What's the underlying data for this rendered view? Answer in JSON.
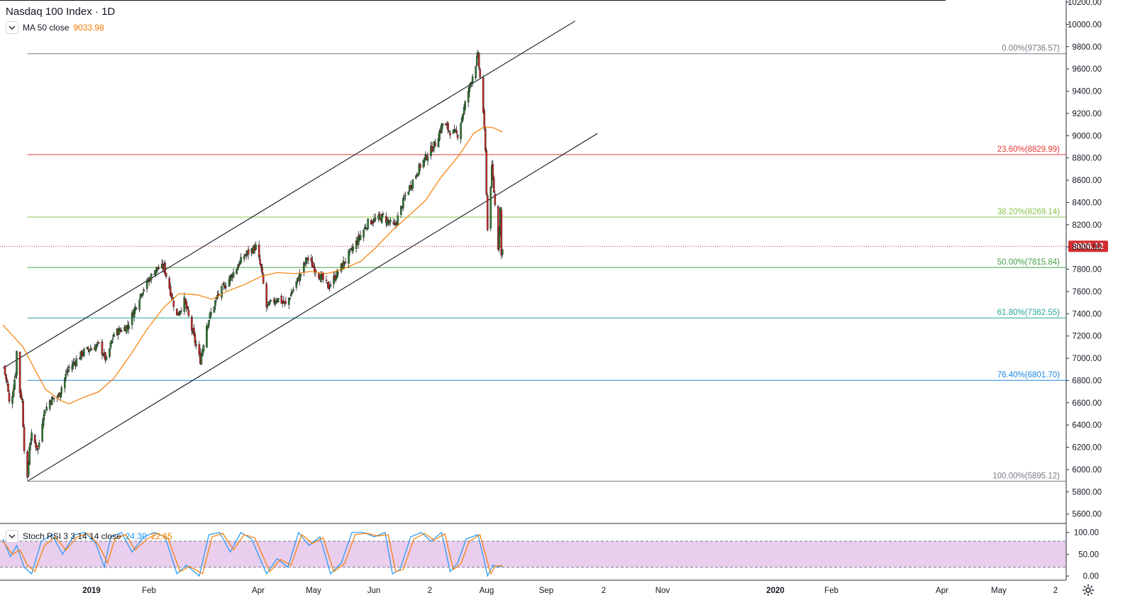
{
  "header": {
    "symbol_title": "Nasdaq 100 Index · 1D",
    "ma_label": "MA 50 close",
    "ma_value": "9033.98",
    "stoch_label": "Stoch RSI 3 3 14 14 close",
    "stoch_k": "24.30",
    "stoch_d": "22.65"
  },
  "icons": {
    "collapse": "chevron-down-icon",
    "settings": "gear-icon"
  },
  "colors": {
    "up": "#26a69a",
    "up_body": "#2e7d32",
    "down": "#c62828",
    "ma": "#f57c00",
    "stoch_k": "#2196f3",
    "stoch_d": "#f57c00",
    "stoch_band": "#e1bee7",
    "last_price_badge": "#d32f2f"
  },
  "chart_data": [
    {
      "type": "candlestick",
      "title": "Nasdaq 100 Index · 1D",
      "y_axis_ticks": [
        "5600.00",
        "5800.00",
        "6000.00",
        "6200.00",
        "6400.00",
        "6600.00",
        "6800.00",
        "7000.00",
        "7200.00",
        "7400.00",
        "7600.00",
        "7800.00",
        "8000.00",
        "8200.00",
        "8400.00",
        "8600.00",
        "8800.00",
        "9000.00",
        "9200.00",
        "9400.00",
        "9600.00",
        "9800.00",
        "10000.00",
        "10200.00"
      ],
      "ylim": [
        5500,
        10200
      ],
      "x_axis_ticks": [
        "2019",
        "Feb",
        "Apr",
        "May",
        "Jun",
        "2",
        "Aug",
        "Sep",
        "2",
        "Nov",
        "2020",
        "Feb",
        "Apr",
        "May",
        "2"
      ],
      "last_price": "8006.12",
      "close_path": [
        [
          "2018-12-01",
          6930
        ],
        [
          "2018-12-05",
          6780
        ],
        [
          "2018-12-07",
          6600
        ],
        [
          "2018-12-10",
          6680
        ],
        [
          "2018-12-13",
          6880
        ],
        [
          "2018-12-14",
          7060
        ],
        [
          "2018-12-17",
          6700
        ],
        [
          "2018-12-19",
          6620
        ],
        [
          "2018-12-21",
          6200
        ],
        [
          "2018-12-24",
          5900
        ],
        [
          "2018-12-26",
          6220
        ],
        [
          "2018-12-28",
          6300
        ],
        [
          "2019-01-03",
          6180
        ],
        [
          "2019-01-08",
          6500
        ],
        [
          "2019-01-14",
          6620
        ],
        [
          "2019-01-22",
          6660
        ],
        [
          "2019-01-31",
          6900
        ],
        [
          "2019-02-15",
          7060
        ],
        [
          "2019-03-01",
          7120
        ],
        [
          "2019-03-08",
          6980
        ],
        [
          "2019-03-15",
          7220
        ],
        [
          "2019-03-28",
          7290
        ],
        [
          "2019-04-10",
          7600
        ],
        [
          "2019-04-23",
          7800
        ],
        [
          "2019-05-01",
          7820
        ],
        [
          "2019-05-07",
          7600
        ],
        [
          "2019-05-13",
          7380
        ],
        [
          "2019-05-20",
          7520
        ],
        [
          "2019-05-31",
          7110
        ],
        [
          "2019-06-04",
          6980
        ],
        [
          "2019-06-10",
          7300
        ],
        [
          "2019-06-20",
          7560
        ],
        [
          "2019-07-03",
          7740
        ],
        [
          "2019-07-15",
          7920
        ],
        [
          "2019-07-26",
          8000
        ],
        [
          "2019-07-31",
          7800
        ],
        [
          "2019-08-05",
          7460
        ],
        [
          "2019-08-15",
          7540
        ],
        [
          "2019-08-23",
          7480
        ],
        [
          "2019-09-05",
          7740
        ],
        [
          "2019-09-12",
          7900
        ],
        [
          "2019-09-24",
          7740
        ],
        [
          "2019-10-02",
          7640
        ],
        [
          "2019-10-10",
          7760
        ],
        [
          "2019-10-25",
          7990
        ],
        [
          "2019-11-08",
          8220
        ],
        [
          "2019-11-22",
          8270
        ],
        [
          "2019-12-03",
          8180
        ],
        [
          "2019-12-13",
          8460
        ],
        [
          "2019-12-27",
          8730
        ],
        [
          "2020-01-10",
          8930
        ],
        [
          "2020-01-17",
          9110
        ],
        [
          "2020-01-24",
          9040
        ],
        [
          "2020-01-31",
          9010
        ],
        [
          "2020-02-10",
          9400
        ],
        [
          "2020-02-19",
          9718
        ],
        [
          "2020-02-24",
          9220
        ],
        [
          "2020-02-26",
          8850
        ],
        [
          "2020-02-28",
          8150
        ],
        [
          "2020-03-03",
          8700
        ],
        [
          "2020-03-05",
          8500
        ],
        [
          "2020-03-09",
          8000
        ],
        [
          "2020-03-11",
          8350
        ],
        [
          "2020-03-12",
          7920
        ],
        [
          "2020-03-13",
          8006
        ]
      ],
      "series": [
        {
          "name": "MA 50 close",
          "points": [
            [
              "2018-12-01",
              7300
            ],
            [
              "2018-12-20",
              7100
            ],
            [
              "2019-01-01",
              6880
            ],
            [
              "2019-01-10",
              6720
            ],
            [
              "2019-01-24",
              6620
            ],
            [
              "2019-02-01",
              6590
            ],
            [
              "2019-02-15",
              6650
            ],
            [
              "2019-03-01",
              6700
            ],
            [
              "2019-03-15",
              6820
            ],
            [
              "2019-04-01",
              7050
            ],
            [
              "2019-04-15",
              7260
            ],
            [
              "2019-05-01",
              7460
            ],
            [
              "2019-05-15",
              7580
            ],
            [
              "2019-06-01",
              7570
            ],
            [
              "2019-06-15",
              7530
            ],
            [
              "2019-07-01",
              7610
            ],
            [
              "2019-07-15",
              7660
            ],
            [
              "2019-08-01",
              7740
            ],
            [
              "2019-08-15",
              7770
            ],
            [
              "2019-09-01",
              7760
            ],
            [
              "2019-09-15",
              7780
            ],
            [
              "2019-10-01",
              7760
            ],
            [
              "2019-10-15",
              7800
            ],
            [
              "2019-11-01",
              7870
            ],
            [
              "2019-11-15",
              7990
            ],
            [
              "2019-12-01",
              8150
            ],
            [
              "2019-12-15",
              8270
            ],
            [
              "2020-01-01",
              8420
            ],
            [
              "2020-01-15",
              8620
            ],
            [
              "2020-02-01",
              8820
            ],
            [
              "2020-02-15",
              9020
            ],
            [
              "2020-02-25",
              9080
            ],
            [
              "2020-03-05",
              9070
            ],
            [
              "2020-03-13",
              9034
            ]
          ]
        }
      ],
      "channel": {
        "upper": [
          [
            "2018-12-01",
            6910
          ],
          [
            "2020-05-20",
            10030
          ]
        ],
        "lower": [
          [
            "2018-12-24",
            5895
          ],
          [
            "2020-06-10",
            9020
          ]
        ]
      },
      "fibonacci": {
        "start_date": "2018-12-24",
        "levels": [
          {
            "label": "0.00%(9736.57)",
            "price": 9736.57,
            "color": "#787b86"
          },
          {
            "label": "23.60%(8829.99)",
            "price": 8829.99,
            "color": "#e53935"
          },
          {
            "label": "38.20%(8269.14)",
            "price": 8269.14,
            "color": "#8bc34a"
          },
          {
            "label": "50.00%(7815.84)",
            "price": 7815.84,
            "color": "#43a047"
          },
          {
            "label": "61.80%(7362.55)",
            "price": 7362.55,
            "color": "#26a69a"
          },
          {
            "label": "76.40%(6801.70)",
            "price": 6801.7,
            "color": "#1e88e5"
          },
          {
            "label": "100.00%(5895.12)",
            "price": 5895.12,
            "color": "#787b86"
          }
        ]
      }
    },
    {
      "type": "line",
      "title": "Stoch RSI 3 3 14 14 close",
      "y_axis_ticks": [
        "0.00",
        "50.00",
        "100.00"
      ],
      "ylim": [
        -8,
        106
      ],
      "bands": [
        20,
        80
      ],
      "series": [
        {
          "name": "K",
          "points": [
            [
              "2018-12-01",
              85
            ],
            [
              "2018-12-08",
              45
            ],
            [
              "2018-12-14",
              70
            ],
            [
              "2018-12-21",
              20
            ],
            [
              "2018-12-28",
              5
            ],
            [
              "2019-01-06",
              80
            ],
            [
              "2019-01-16",
              95
            ],
            [
              "2019-01-26",
              50
            ],
            [
              "2019-02-06",
              95
            ],
            [
              "2019-02-16",
              100
            ],
            [
              "2019-02-26",
              75
            ],
            [
              "2019-03-06",
              20
            ],
            [
              "2019-03-12",
              90
            ],
            [
              "2019-03-22",
              100
            ],
            [
              "2019-04-01",
              55
            ],
            [
              "2019-04-12",
              90
            ],
            [
              "2019-04-22",
              100
            ],
            [
              "2019-05-02",
              90
            ],
            [
              "2019-05-13",
              5
            ],
            [
              "2019-05-22",
              25
            ],
            [
              "2019-06-03",
              0
            ],
            [
              "2019-06-12",
              95
            ],
            [
              "2019-06-22",
              100
            ],
            [
              "2019-07-02",
              55
            ],
            [
              "2019-07-12",
              100
            ],
            [
              "2019-07-22",
              85
            ],
            [
              "2019-08-05",
              5
            ],
            [
              "2019-08-15",
              40
            ],
            [
              "2019-08-25",
              20
            ],
            [
              "2019-09-04",
              100
            ],
            [
              "2019-09-14",
              70
            ],
            [
              "2019-09-24",
              90
            ],
            [
              "2019-10-04",
              5
            ],
            [
              "2019-10-14",
              30
            ],
            [
              "2019-10-24",
              100
            ],
            [
              "2019-11-04",
              100
            ],
            [
              "2019-11-14",
              90
            ],
            [
              "2019-11-24",
              100
            ],
            [
              "2019-12-01",
              5
            ],
            [
              "2019-12-08",
              15
            ],
            [
              "2019-12-18",
              90
            ],
            [
              "2019-12-28",
              100
            ],
            [
              "2020-01-06",
              80
            ],
            [
              "2020-01-16",
              100
            ],
            [
              "2020-01-24",
              10
            ],
            [
              "2020-01-31",
              30
            ],
            [
              "2020-02-08",
              85
            ],
            [
              "2020-02-19",
              95
            ],
            [
              "2020-02-24",
              45
            ],
            [
              "2020-02-28",
              0
            ],
            [
              "2020-03-04",
              25
            ],
            [
              "2020-03-09",
              20
            ],
            [
              "2020-03-13",
              24.3
            ]
          ]
        },
        {
          "name": "D",
          "points": [
            [
              "2018-12-01",
              80
            ],
            [
              "2018-12-10",
              50
            ],
            [
              "2018-12-17",
              60
            ],
            [
              "2018-12-24",
              25
            ],
            [
              "2018-12-31",
              10
            ],
            [
              "2019-01-09",
              70
            ],
            [
              "2019-01-19",
              90
            ],
            [
              "2019-01-29",
              60
            ],
            [
              "2019-02-09",
              90
            ],
            [
              "2019-02-19",
              98
            ],
            [
              "2019-03-01",
              70
            ],
            [
              "2019-03-09",
              30
            ],
            [
              "2019-03-16",
              85
            ],
            [
              "2019-03-26",
              95
            ],
            [
              "2019-04-04",
              60
            ],
            [
              "2019-04-15",
              85
            ],
            [
              "2019-04-25",
              98
            ],
            [
              "2019-05-05",
              85
            ],
            [
              "2019-05-16",
              10
            ],
            [
              "2019-05-25",
              22
            ],
            [
              "2019-06-06",
              5
            ],
            [
              "2019-06-15",
              90
            ],
            [
              "2019-06-25",
              98
            ],
            [
              "2019-07-05",
              60
            ],
            [
              "2019-07-15",
              95
            ],
            [
              "2019-07-25",
              88
            ],
            [
              "2019-08-08",
              10
            ],
            [
              "2019-08-18",
              38
            ],
            [
              "2019-08-28",
              25
            ],
            [
              "2019-09-07",
              95
            ],
            [
              "2019-09-17",
              75
            ],
            [
              "2019-09-27",
              88
            ],
            [
              "2019-10-07",
              10
            ],
            [
              "2019-10-17",
              28
            ],
            [
              "2019-10-27",
              95
            ],
            [
              "2019-11-07",
              98
            ],
            [
              "2019-11-17",
              92
            ],
            [
              "2019-11-27",
              95
            ],
            [
              "2019-12-04",
              10
            ],
            [
              "2019-12-11",
              15
            ],
            [
              "2019-12-21",
              85
            ],
            [
              "2019-12-31",
              98
            ],
            [
              "2020-01-09",
              82
            ],
            [
              "2020-01-19",
              97
            ],
            [
              "2020-01-27",
              15
            ],
            [
              "2020-02-03",
              28
            ],
            [
              "2020-02-11",
              80
            ],
            [
              "2020-02-21",
              95
            ],
            [
              "2020-02-26",
              50
            ],
            [
              "2020-03-02",
              5
            ],
            [
              "2020-03-06",
              22
            ],
            [
              "2020-03-11",
              24
            ],
            [
              "2020-03-13",
              22.65
            ]
          ]
        }
      ]
    }
  ]
}
